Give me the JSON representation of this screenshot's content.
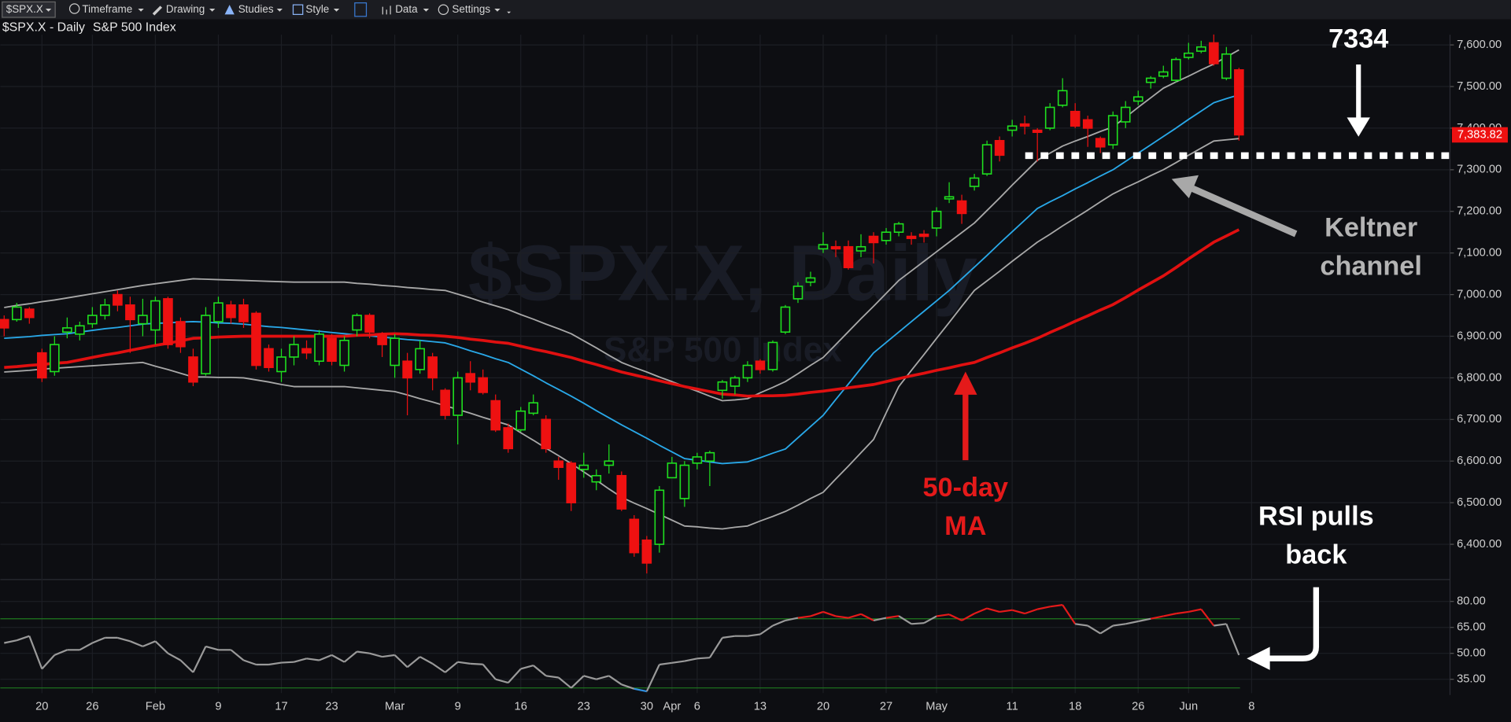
{
  "toolbar": {
    "symbol": "$SPX.X",
    "items": [
      "Timeframe",
      "Drawing",
      "Studies",
      "Style",
      "Data",
      "Settings"
    ]
  },
  "chart_data": {
    "type": "candlestick",
    "title": "$SPX.X - Daily",
    "subtitle": "S&P 500 Index",
    "watermark": [
      "$SPX.X, Daily",
      "S&P 500 Index"
    ],
    "categories": [
      null,
      null,
      null,
      "20",
      null,
      null,
      null,
      "26",
      null,
      null,
      null,
      null,
      "Feb",
      null,
      null,
      null,
      null,
      "9",
      null,
      null,
      null,
      null,
      "17",
      null,
      null,
      null,
      "23",
      null,
      null,
      null,
      null,
      "Mar",
      null,
      null,
      null,
      null,
      "9",
      null,
      null,
      null,
      null,
      "16",
      null,
      null,
      null,
      null,
      "23",
      null,
      null,
      null,
      null,
      "30",
      null,
      "Apr",
      null,
      "6",
      null,
      null,
      null,
      null,
      "13",
      null,
      null,
      null,
      null,
      "20",
      null,
      null,
      null,
      null,
      "27",
      null,
      null,
      null,
      "May",
      null,
      null,
      null,
      null,
      null,
      "11",
      null,
      null,
      null,
      null,
      "18",
      null,
      null,
      null,
      null,
      "26",
      null,
      null,
      null,
      "Jun",
      null,
      null,
      null,
      null,
      "8"
    ],
    "ohlc": [
      [
        6940,
        6950,
        6900,
        6920
      ],
      [
        6940,
        6980,
        6935,
        6970
      ],
      [
        6965,
        6970,
        6930,
        6945
      ],
      [
        6860,
        6870,
        6790,
        6800
      ],
      [
        6815,
        6900,
        6805,
        6880
      ],
      [
        6910,
        6945,
        6895,
        6920
      ],
      [
        6905,
        6935,
        6890,
        6925
      ],
      [
        6930,
        6970,
        6920,
        6950
      ],
      [
        6950,
        6990,
        6940,
        6975
      ],
      [
        7000,
        7010,
        6960,
        6975
      ],
      [
        6975,
        6995,
        6860,
        6940
      ],
      [
        6930,
        6990,
        6900,
        6950
      ],
      [
        6915,
        6995,
        6880,
        6985
      ],
      [
        6990,
        6995,
        6870,
        6880
      ],
      [
        6935,
        6945,
        6860,
        6875
      ],
      [
        6850,
        6870,
        6780,
        6790
      ],
      [
        6810,
        6970,
        6805,
        6950
      ],
      [
        6935,
        6995,
        6920,
        6980
      ],
      [
        6975,
        6985,
        6930,
        6945
      ],
      [
        6975,
        6990,
        6920,
        6935
      ],
      [
        6955,
        6960,
        6820,
        6830
      ],
      [
        6870,
        6880,
        6815,
        6825
      ],
      [
        6815,
        6870,
        6790,
        6850
      ],
      [
        6850,
        6900,
        6830,
        6880
      ],
      [
        6870,
        6890,
        6845,
        6860
      ],
      [
        6840,
        6915,
        6830,
        6905
      ],
      [
        6895,
        6905,
        6830,
        6840
      ],
      [
        6830,
        6900,
        6815,
        6890
      ],
      [
        6915,
        6955,
        6900,
        6950
      ],
      [
        6950,
        6955,
        6895,
        6910
      ],
      [
        6905,
        6910,
        6850,
        6880
      ],
      [
        6830,
        6905,
        6800,
        6895
      ],
      [
        6840,
        6860,
        6710,
        6800
      ],
      [
        6820,
        6890,
        6810,
        6870
      ],
      [
        6850,
        6860,
        6770,
        6800
      ],
      [
        6770,
        6775,
        6700,
        6710
      ],
      [
        6710,
        6815,
        6640,
        6800
      ],
      [
        6810,
        6840,
        6770,
        6790
      ],
      [
        6800,
        6820,
        6760,
        6765
      ],
      [
        6745,
        6760,
        6670,
        6675
      ],
      [
        6680,
        6690,
        6620,
        6630
      ],
      [
        6675,
        6730,
        6670,
        6720
      ],
      [
        6715,
        6760,
        6710,
        6740
      ],
      [
        6700,
        6710,
        6620,
        6630
      ],
      [
        6600,
        6610,
        6555,
        6585
      ],
      [
        6595,
        6600,
        6480,
        6500
      ],
      [
        6580,
        6620,
        6560,
        6590
      ],
      [
        6550,
        6580,
        6530,
        6565
      ],
      [
        6590,
        6640,
        6570,
        6600
      ],
      [
        6565,
        6575,
        6480,
        6485
      ],
      [
        6460,
        6470,
        6370,
        6380
      ],
      [
        6410,
        6420,
        6330,
        6355
      ],
      [
        6400,
        6540,
        6380,
        6530
      ],
      [
        6560,
        6610,
        6560,
        6595
      ],
      [
        6510,
        6600,
        6490,
        6590
      ],
      [
        6595,
        6620,
        6580,
        6610
      ],
      [
        6600,
        6625,
        6540,
        6620
      ],
      [
        6770,
        6795,
        6750,
        6790
      ],
      [
        6780,
        6805,
        6760,
        6800
      ],
      [
        6800,
        6840,
        6790,
        6830
      ],
      [
        6840,
        6845,
        6810,
        6820
      ],
      [
        6820,
        6890,
        6815,
        6885
      ],
      [
        6910,
        6975,
        6905,
        6970
      ],
      [
        6990,
        7030,
        6980,
        7020
      ],
      [
        7030,
        7055,
        7020,
        7040
      ],
      [
        7110,
        7150,
        7100,
        7120
      ],
      [
        7115,
        7130,
        7090,
        7110
      ],
      [
        7115,
        7130,
        7060,
        7065
      ],
      [
        7105,
        7145,
        7090,
        7115
      ],
      [
        7140,
        7150,
        7075,
        7125
      ],
      [
        7130,
        7160,
        7120,
        7150
      ],
      [
        7150,
        7175,
        7140,
        7170
      ],
      [
        7140,
        7150,
        7120,
        7135
      ],
      [
        7145,
        7155,
        7125,
        7140
      ],
      [
        7160,
        7210,
        7140,
        7200
      ],
      [
        7230,
        7270,
        7220,
        7235
      ],
      [
        7225,
        7240,
        7170,
        7195
      ],
      [
        7260,
        7290,
        7250,
        7280
      ],
      [
        7290,
        7370,
        7285,
        7360
      ],
      [
        7370,
        7380,
        7320,
        7335
      ],
      [
        7395,
        7420,
        7380,
        7405
      ],
      [
        7410,
        7430,
        7385,
        7405
      ],
      [
        7395,
        7400,
        7320,
        7390
      ],
      [
        7400,
        7460,
        7395,
        7450
      ],
      [
        7455,
        7520,
        7450,
        7490
      ],
      [
        7440,
        7460,
        7400,
        7405
      ],
      [
        7420,
        7430,
        7355,
        7400
      ],
      [
        7375,
        7380,
        7340,
        7355
      ],
      [
        7360,
        7440,
        7350,
        7430
      ],
      [
        7415,
        7465,
        7400,
        7450
      ],
      [
        7465,
        7490,
        7455,
        7475
      ],
      [
        7510,
        7525,
        7495,
        7520
      ],
      [
        7525,
        7550,
        7520,
        7535
      ],
      [
        7515,
        7570,
        7510,
        7565
      ],
      [
        7570,
        7605,
        7565,
        7580
      ],
      [
        7585,
        7610,
        7580,
        7595
      ],
      [
        7605,
        7625,
        7550,
        7555
      ],
      [
        7520,
        7595,
        7515,
        7578
      ],
      [
        7540,
        7545,
        7370,
        7383.82
      ],
      null
    ],
    "up_color": "#1fe01f",
    "down_color": "#ee1111",
    "overlays": [
      {
        "color": "#a8a8a8",
        "values": [
          6969,
          6974,
          6978,
          6983,
          6987,
          6992,
          6997,
          7002,
          7007,
          7012,
          7017,
          7022,
          7026,
          7030,
          7034,
          7038,
          7037,
          7036,
          7035,
          7034,
          7033,
          7032,
          7031,
          7030,
          7030,
          7030,
          7030,
          7030,
          7027,
          7025,
          7022,
          7020,
          7017,
          7015,
          7012,
          7010,
          7001,
          6992,
          6982,
          6973,
          6964,
          6952,
          6941,
          6929,
          6918,
          6906,
          6889,
          6872,
          6854,
          6837,
          6825,
          6814,
          6802,
          6791,
          6779,
          6768,
          6756,
          6745,
          6747,
          6750,
          6764,
          6777,
          6791,
          6810,
          6830,
          6849,
          6880,
          6911,
          6942,
          6972,
          7003,
          7034,
          7057,
          7080,
          7103,
          7126,
          7149,
          7172,
          7202,
          7232,
          7263,
          7293,
          7323,
          7340,
          7357,
          7369,
          7380,
          7392,
          7403,
          7426,
          7450,
          7473,
          7496,
          7511,
          7525,
          7540,
          7554,
          7571,
          7588,
          null
        ]
      },
      {
        "color": "#29a8e8",
        "values": [
          6895,
          6897,
          6899,
          6902,
          6904,
          6906,
          6910,
          6914,
          6918,
          6921,
          6925,
          6929,
          6931,
          6932,
          6934,
          6935,
          6934,
          6932,
          6931,
          6929,
          6926,
          6923,
          6921,
          6918,
          6915,
          6912,
          6909,
          6906,
          6903,
          6901,
          6898,
          6895,
          6892,
          6890,
          6887,
          6884,
          6875,
          6865,
          6856,
          6846,
          6837,
          6821,
          6805,
          6788,
          6772,
          6756,
          6739,
          6721,
          6704,
          6687,
          6671,
          6655,
          6638,
          6622,
          6606,
          6602,
          6598,
          6594,
          6596,
          6598,
          6608,
          6619,
          6629,
          6656,
          6683,
          6710,
          6748,
          6785,
          6823,
          6860,
          6885,
          6910,
          6935,
          6960,
          6985,
          7010,
          7038,
          7066,
          7094,
          7123,
          7151,
          7179,
          7207,
          7223,
          7238,
          7254,
          7269,
          7285,
          7300,
          7320,
          7340,
          7360,
          7380,
          7400,
          7421,
          7441,
          7461,
          7471,
          7480,
          null
        ]
      },
      {
        "color": "#a8a8a8",
        "values": [
          6814,
          6816,
          6818,
          6821,
          6823,
          6825,
          6827,
          6829,
          6831,
          6833,
          6835,
          6837,
          6828,
          6820,
          6811,
          6802,
          6802,
          6801,
          6801,
          6800,
          6795,
          6790,
          6784,
          6779,
          6779,
          6779,
          6779,
          6779,
          6776,
          6773,
          6770,
          6767,
          6759,
          6750,
          6742,
          6733,
          6724,
          6715,
          6705,
          6696,
          6687,
          6668,
          6650,
          6631,
          6613,
          6594,
          6574,
          6554,
          6533,
          6513,
          6499,
          6486,
          6472,
          6458,
          6444,
          6442,
          6439,
          6437,
          6441,
          6444,
          6456,
          6467,
          6479,
          6494,
          6510,
          6525,
          6557,
          6588,
          6620,
          6652,
          6716,
          6779,
          6818,
          6856,
          6895,
          6933,
          6972,
          7010,
          7033,
          7056,
          7080,
          7103,
          7126,
          7145,
          7165,
          7184,
          7203,
          7223,
          7242,
          7257,
          7271,
          7286,
          7300,
          7317,
          7335,
          7352,
          7369,
          7372,
          7375,
          null
        ]
      },
      {
        "color": "#e01010",
        "width": 3,
        "values": [
          6825,
          6827,
          6830,
          6832,
          6835,
          6837,
          6843,
          6849,
          6855,
          6860,
          6866,
          6872,
          6878,
          6883,
          6889,
          6895,
          6896,
          6898,
          6899,
          6900,
          6900,
          6900,
          6900,
          6900,
          6900,
          6900,
          6900,
          6900,
          6902,
          6903,
          6905,
          6906,
          6905,
          6903,
          6902,
          6900,
          6897,
          6893,
          6890,
          6886,
          6883,
          6876,
          6869,
          6863,
          6856,
          6849,
          6840,
          6832,
          6823,
          6814,
          6807,
          6800,
          6793,
          6786,
          6779,
          6773,
          6767,
          6761,
          6759,
          6756,
          6757,
          6757,
          6758,
          6761,
          6765,
          6768,
          6772,
          6776,
          6780,
          6784,
          6791,
          6798,
          6805,
          6811,
          6818,
          6824,
          6831,
          6837,
          6849,
          6860,
          6872,
          6883,
          6895,
          6909,
          6922,
          6936,
          6949,
          6963,
          6976,
          6993,
          7011,
          7028,
          7045,
          7065,
          7086,
          7106,
          7126,
          7141,
          7156,
          null
        ]
      }
    ],
    "ylim": [
      6320,
      7620
    ],
    "yticks": [
      {
        "value": 7600,
        "label": "7,600.00"
      },
      {
        "value": 7500,
        "label": "7,500.00"
      },
      {
        "value": 7400,
        "label": "7,400.00"
      },
      {
        "value": 7300,
        "label": "7,300.00"
      },
      {
        "value": 7200,
        "label": "7,200.00"
      },
      {
        "value": 7100,
        "label": "7,100.00"
      },
      {
        "value": 7000,
        "label": "7,000.00"
      },
      {
        "value": 6900,
        "label": "6,900.00"
      },
      {
        "value": 6800,
        "label": "6,800.00"
      },
      {
        "value": 6700,
        "label": "6,700.00"
      },
      {
        "value": 6600,
        "label": "6,600.00"
      },
      {
        "value": 6500,
        "label": "6,500.00"
      },
      {
        "value": 6400,
        "label": "6,400.00"
      }
    ],
    "last_price": {
      "value": 7383.82,
      "label": "7,383.82"
    },
    "grid": true,
    "level_annotation": {
      "value": 7334,
      "color": "#ffffff"
    },
    "annotations": [
      {
        "lines": [
          "Keltner",
          "channel"
        ],
        "color": "#b4b4b4"
      },
      {
        "lines": [
          "50-day",
          "MA"
        ],
        "color": "#e41a1a"
      },
      {
        "lines": [
          "RSI pulls",
          "back"
        ],
        "color": "#ffffff"
      }
    ],
    "rsi": {
      "values": [
        56,
        57.5,
        60,
        41,
        49,
        52,
        52,
        56,
        59,
        59,
        57,
        54,
        57,
        50,
        46,
        39,
        54,
        52,
        52,
        46,
        43.5,
        43.5,
        44.6,
        45,
        47,
        46,
        49,
        45,
        51,
        50,
        48,
        49,
        42,
        48,
        44,
        39,
        45,
        44,
        43.6,
        35,
        33,
        41,
        43,
        37,
        36,
        30,
        37,
        35,
        37,
        32,
        29.5,
        28,
        43.5,
        44.5,
        45.5,
        47,
        47.5,
        59,
        60,
        60,
        61,
        66,
        69,
        70.5,
        71.5,
        74,
        71.5,
        70.5,
        72.7,
        69,
        70.5,
        71.6,
        67,
        67.5,
        71.5,
        72.5,
        69,
        73,
        76,
        74,
        75,
        73,
        75.5,
        77,
        78,
        67,
        66,
        61.5,
        66,
        67,
        68.5,
        70,
        71.5,
        73,
        74,
        75.5,
        66,
        67,
        49,
        null
      ],
      "color": "#9a9a9a",
      "overbought_color": "#e41a1a",
      "oversold_color": "#2f8fe0",
      "levels": [
        30,
        70
      ],
      "level_color": "#1f7a1f",
      "ylim": [
        27,
        91
      ],
      "yticks": [
        {
          "value": 80,
          "label": "80.00"
        },
        {
          "value": 65,
          "label": "65.00"
        },
        {
          "value": 50,
          "label": "50.00"
        },
        {
          "value": 35,
          "label": "35.00"
        }
      ]
    }
  }
}
